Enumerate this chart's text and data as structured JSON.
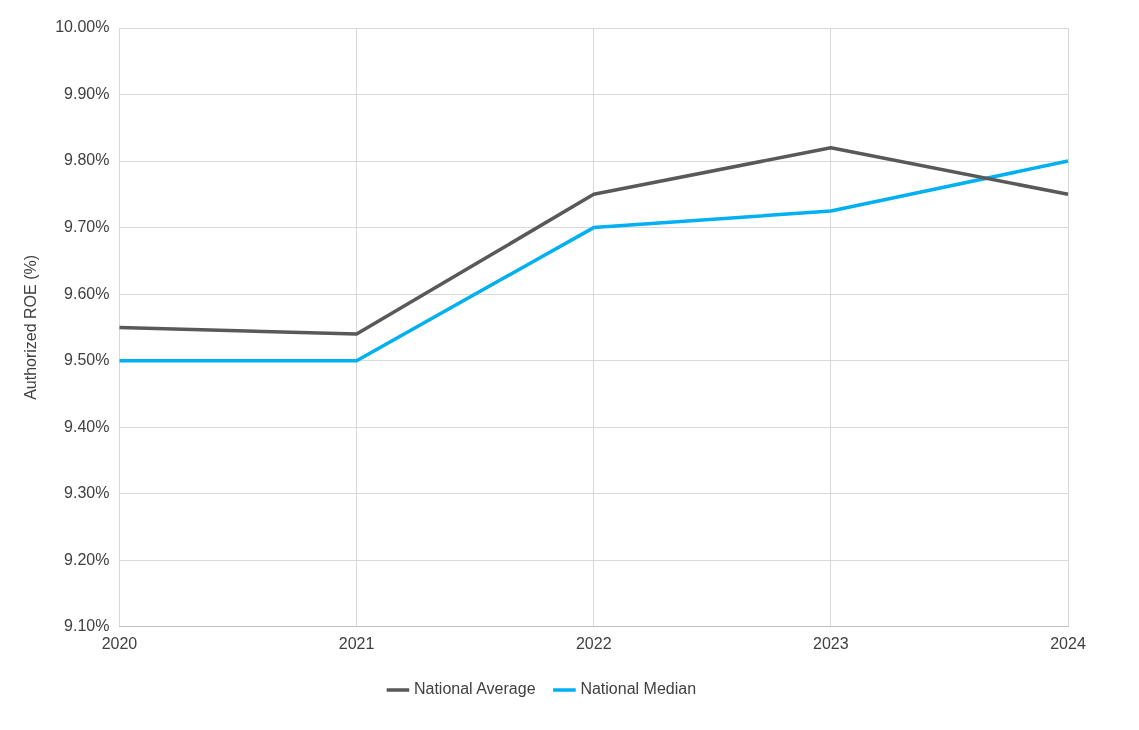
{
  "chart_data": {
    "type": "line",
    "ylabel": "Authorized ROE (%)",
    "categories": [
      "2020",
      "2021",
      "2022",
      "2023",
      "2024"
    ],
    "series": [
      {
        "name": "National Average",
        "color": "#595959",
        "values": [
          9.55,
          9.54,
          9.75,
          9.82,
          9.75
        ]
      },
      {
        "name": "National Median",
        "color": "#00b0f0",
        "values": [
          9.5,
          9.5,
          9.7,
          9.725,
          9.8
        ]
      }
    ],
    "ylim": [
      9.1,
      10.0
    ],
    "yticks": [
      {
        "value": 9.1,
        "label": "9.10%"
      },
      {
        "value": 9.2,
        "label": "9.20%"
      },
      {
        "value": 9.3,
        "label": "9.30%"
      },
      {
        "value": 9.4,
        "label": "9.40%"
      },
      {
        "value": 9.5,
        "label": "9.50%"
      },
      {
        "value": 9.6,
        "label": "9.60%"
      },
      {
        "value": 9.7,
        "label": "9.70%"
      },
      {
        "value": 9.8,
        "label": "9.80%"
      },
      {
        "value": 9.9,
        "label": "9.90%"
      },
      {
        "value": 10.0,
        "label": "10.00%"
      }
    ],
    "grid": true,
    "legend": "bottom",
    "marker": "none",
    "line_style": "solid"
  }
}
